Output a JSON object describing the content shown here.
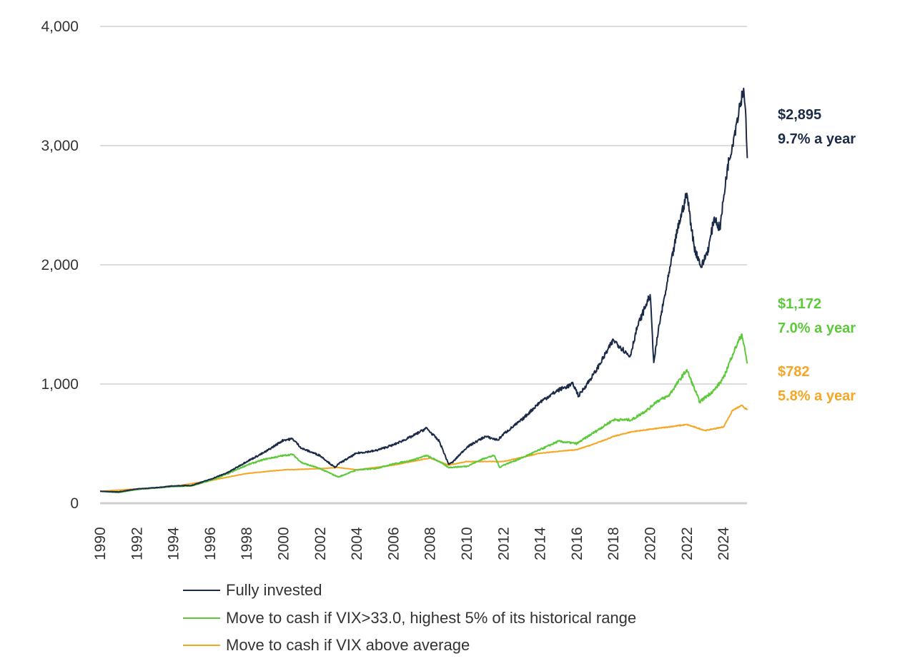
{
  "chart_data": {
    "type": "line",
    "title": "",
    "xlabel": "",
    "ylabel": "",
    "xlim": [
      1990,
      2025.3
    ],
    "ylim": [
      0,
      4000
    ],
    "grid": "horizontal",
    "legend_position": "bottom",
    "y_ticks": [
      "0",
      "1,000",
      "2,000",
      "3,000",
      "4,000"
    ],
    "y_tick_values": [
      0,
      1000,
      2000,
      3000,
      4000
    ],
    "x_ticks": [
      "1990",
      "1992",
      "1994",
      "1996",
      "1998",
      "2000",
      "2002",
      "2004",
      "2006",
      "2008",
      "2010",
      "2012",
      "2014",
      "2016",
      "2018",
      "2020",
      "2022",
      "2024"
    ],
    "series": [
      {
        "name": "Fully invested",
        "color": "#1b2a47",
        "end_value": "$2,895",
        "end_rate": "9.7% a year",
        "points": [
          [
            1990,
            100
          ],
          [
            1991,
            95
          ],
          [
            1992,
            120
          ],
          [
            1993,
            130
          ],
          [
            1994,
            145
          ],
          [
            1995,
            150
          ],
          [
            1996,
            200
          ],
          [
            1997,
            260
          ],
          [
            1998,
            350
          ],
          [
            1999,
            430
          ],
          [
            2000,
            530
          ],
          [
            2000.5,
            540
          ],
          [
            2001,
            460
          ],
          [
            2002,
            400
          ],
          [
            2002.8,
            300
          ],
          [
            2003,
            330
          ],
          [
            2004,
            420
          ],
          [
            2005,
            440
          ],
          [
            2006,
            490
          ],
          [
            2007,
            560
          ],
          [
            2007.8,
            630
          ],
          [
            2008.5,
            520
          ],
          [
            2009,
            330
          ],
          [
            2009.2,
            340
          ],
          [
            2010,
            470
          ],
          [
            2011,
            560
          ],
          [
            2011.7,
            530
          ],
          [
            2012,
            580
          ],
          [
            2013,
            700
          ],
          [
            2014,
            850
          ],
          [
            2015,
            950
          ],
          [
            2015.8,
            1000
          ],
          [
            2016.1,
            900
          ],
          [
            2017,
            1100
          ],
          [
            2018,
            1370
          ],
          [
            2018.9,
            1230
          ],
          [
            2019.3,
            1480
          ],
          [
            2020,
            1750
          ],
          [
            2020.2,
            1180
          ],
          [
            2020.5,
            1500
          ],
          [
            2021,
            1900
          ],
          [
            2021.5,
            2300
          ],
          [
            2022,
            2600
          ],
          [
            2022.4,
            2150
          ],
          [
            2022.8,
            1980
          ],
          [
            2023.2,
            2150
          ],
          [
            2023.5,
            2400
          ],
          [
            2023.8,
            2300
          ],
          [
            2024.2,
            2800
          ],
          [
            2024.6,
            3100
          ],
          [
            2024.9,
            3350
          ],
          [
            2025.1,
            3480
          ],
          [
            2025.2,
            3300
          ],
          [
            2025.3,
            2895
          ]
        ]
      },
      {
        "name": "Move to cash if VIX>33.0, highest 5% of its historical range",
        "color": "#5cc93a",
        "end_value": "$1,172",
        "end_rate": "7.0% a year",
        "points": [
          [
            1990,
            100
          ],
          [
            1991,
            90
          ],
          [
            1992,
            115
          ],
          [
            1994,
            140
          ],
          [
            1995,
            145
          ],
          [
            1996,
            190
          ],
          [
            1997,
            250
          ],
          [
            1998,
            320
          ],
          [
            1999,
            370
          ],
          [
            2000,
            400
          ],
          [
            2000.5,
            410
          ],
          [
            2001,
            340
          ],
          [
            2002,
            290
          ],
          [
            2003,
            220
          ],
          [
            2003.5,
            250
          ],
          [
            2004,
            280
          ],
          [
            2005,
            290
          ],
          [
            2006,
            330
          ],
          [
            2007,
            360
          ],
          [
            2007.8,
            400
          ],
          [
            2008.5,
            350
          ],
          [
            2009,
            300
          ],
          [
            2010,
            310
          ],
          [
            2011,
            380
          ],
          [
            2011.5,
            400
          ],
          [
            2011.8,
            300
          ],
          [
            2012,
            320
          ],
          [
            2013,
            380
          ],
          [
            2014,
            450
          ],
          [
            2015,
            520
          ],
          [
            2016,
            500
          ],
          [
            2017,
            600
          ],
          [
            2018,
            700
          ],
          [
            2019,
            700
          ],
          [
            2020,
            800
          ],
          [
            2020.3,
            850
          ],
          [
            2021,
            900
          ],
          [
            2022,
            1120
          ],
          [
            2022.7,
            850
          ],
          [
            2023.5,
            950
          ],
          [
            2024,
            1050
          ],
          [
            2024.5,
            1250
          ],
          [
            2025,
            1420
          ],
          [
            2025.3,
            1172
          ]
        ]
      },
      {
        "name": "Move to cash if VIX above average",
        "color": "#f5a623",
        "end_value": "$782",
        "end_rate": "5.8% a year",
        "points": [
          [
            1990,
            100
          ],
          [
            1994,
            140
          ],
          [
            1996,
            190
          ],
          [
            1998,
            250
          ],
          [
            2000,
            280
          ],
          [
            2002,
            290
          ],
          [
            2003,
            300
          ],
          [
            2004,
            280
          ],
          [
            2006,
            320
          ],
          [
            2008,
            380
          ],
          [
            2009,
            320
          ],
          [
            2010,
            350
          ],
          [
            2012,
            350
          ],
          [
            2014,
            420
          ],
          [
            2016,
            450
          ],
          [
            2017,
            500
          ],
          [
            2018,
            560
          ],
          [
            2019,
            600
          ],
          [
            2020,
            620
          ],
          [
            2021,
            640
          ],
          [
            2022,
            660
          ],
          [
            2023,
            610
          ],
          [
            2024,
            640
          ],
          [
            2024.5,
            780
          ],
          [
            2025,
            820
          ],
          [
            2025.3,
            782
          ]
        ]
      }
    ]
  }
}
